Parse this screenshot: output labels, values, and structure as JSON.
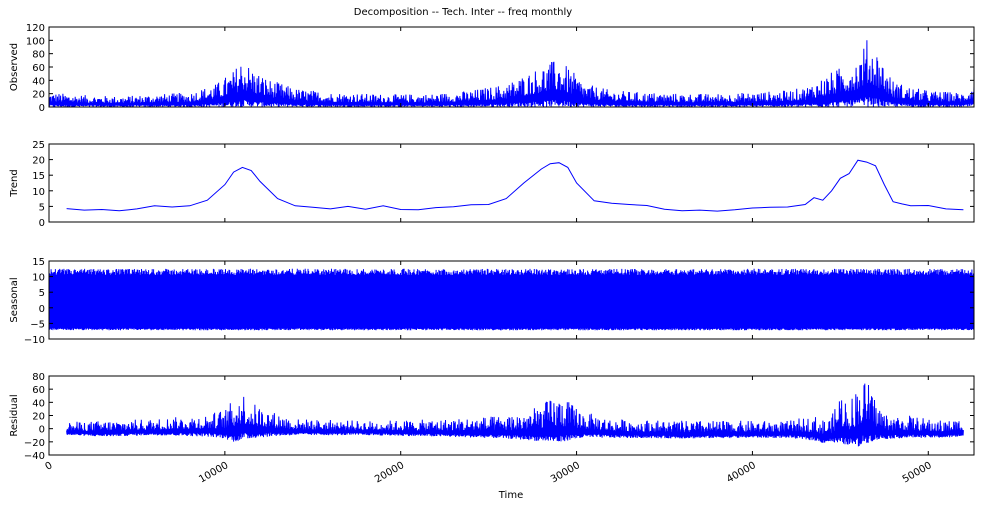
{
  "title": "Decomposition -- Tech. Inter -- freq monthly",
  "line_color": "#0000ff",
  "chart_data": [
    {
      "type": "line",
      "ylabel": "Observed",
      "xlim": [
        0,
        52600
      ],
      "ylim": [
        0,
        120
      ],
      "yticks": [
        "0",
        "20",
        "40",
        "60",
        "80",
        "100",
        "120"
      ],
      "envelope": {
        "x": [
          0,
          2000,
          4000,
          6000,
          8000,
          9500,
          10500,
          11000,
          11500,
          12500,
          14000,
          16000,
          18000,
          20000,
          22000,
          24000,
          26000,
          27500,
          28500,
          29000,
          29500,
          30500,
          32000,
          34000,
          36000,
          38000,
          40000,
          42000,
          43000,
          44000,
          45000,
          46000,
          46500,
          47000,
          47500,
          48000,
          49000,
          50000,
          51000,
          52000,
          52600
        ],
        "upper": [
          22,
          18,
          16,
          19,
          22,
          35,
          55,
          75,
          60,
          42,
          28,
          22,
          20,
          19,
          20,
          25,
          35,
          55,
          68,
          72,
          60,
          35,
          25,
          22,
          20,
          20,
          22,
          25,
          30,
          45,
          60,
          75,
          102,
          90,
          65,
          40,
          30,
          25,
          23,
          22,
          38
        ],
        "lower": [
          0,
          0,
          0,
          0,
          0,
          0,
          0,
          0,
          0,
          0,
          0,
          0,
          0,
          0,
          0,
          0,
          0,
          0,
          0,
          0,
          0,
          0,
          0,
          0,
          0,
          0,
          0,
          0,
          0,
          0,
          0,
          0,
          0,
          0,
          0,
          0,
          0,
          0,
          0,
          0,
          0
        ]
      }
    },
    {
      "type": "line",
      "ylabel": "Trend",
      "xlim": [
        0,
        52600
      ],
      "ylim": [
        0,
        25
      ],
      "yticks": [
        "0",
        "5",
        "10",
        "15",
        "20",
        "25"
      ],
      "x": [
        1000,
        2000,
        3000,
        4000,
        5000,
        6000,
        7000,
        8000,
        9000,
        10000,
        10500,
        11000,
        11500,
        12000,
        13000,
        14000,
        15000,
        16000,
        17000,
        18000,
        19000,
        20000,
        21000,
        22000,
        23000,
        24000,
        25000,
        26000,
        27000,
        28000,
        28500,
        29000,
        29500,
        30000,
        31000,
        32000,
        33000,
        34000,
        35000,
        36000,
        37000,
        38000,
        39000,
        40000,
        41000,
        42000,
        43000,
        43500,
        44000,
        44500,
        45000,
        45500,
        46000,
        46500,
        47000,
        47500,
        48000,
        48500,
        49000,
        50000,
        51000,
        52000
      ],
      "y": [
        4.3,
        3.8,
        4.0,
        3.6,
        4.2,
        5.2,
        4.8,
        5.2,
        7.0,
        12.0,
        16.0,
        17.5,
        16.5,
        13.0,
        7.5,
        5.2,
        4.7,
        4.2,
        5.0,
        4.1,
        5.2,
        4.0,
        3.9,
        4.6,
        4.9,
        5.5,
        5.6,
        7.5,
        12.5,
        17.0,
        18.7,
        19.0,
        17.5,
        12.5,
        6.8,
        6.0,
        5.6,
        5.3,
        4.1,
        3.6,
        3.8,
        3.5,
        3.9,
        4.5,
        4.7,
        4.8,
        5.6,
        7.8,
        7.0,
        10.0,
        14.0,
        15.5,
        19.8,
        19.2,
        18.0,
        12.0,
        6.5,
        5.8,
        5.2,
        5.3,
        4.2,
        3.9
      ]
    },
    {
      "type": "line",
      "ylabel": "Seasonal",
      "xlim": [
        0,
        52600
      ],
      "ylim": [
        -10,
        15
      ],
      "yticks": [
        "−10",
        "−5",
        "0",
        "5",
        "10",
        "15"
      ],
      "envelope": {
        "upper_range": [
          10.5,
          12.5
        ],
        "lower": -7.2,
        "period": 730
      }
    },
    {
      "type": "line",
      "ylabel": "Residual",
      "xlim": [
        0,
        52600
      ],
      "ylim": [
        -40,
        80
      ],
      "yticks": [
        "−40",
        "−20",
        "0",
        "20",
        "40",
        "60",
        "80"
      ],
      "envelope": {
        "x": [
          1000,
          3000,
          6000,
          9000,
          10000,
          10500,
          11000,
          11500,
          12500,
          14000,
          18000,
          22000,
          26000,
          27500,
          28500,
          29000,
          29500,
          30500,
          32000,
          36000,
          40000,
          42000,
          43500,
          44000,
          44500,
          45000,
          45500,
          46000,
          46500,
          47000,
          47500,
          48000,
          49000,
          50000,
          51000,
          52000
        ],
        "upper": [
          10,
          12,
          15,
          22,
          30,
          45,
          58,
          40,
          28,
          15,
          12,
          14,
          20,
          30,
          45,
          50,
          42,
          25,
          15,
          12,
          12,
          12,
          20,
          15,
          18,
          60,
          40,
          70,
          75,
          45,
          25,
          20,
          20,
          15,
          12,
          16
        ],
        "lower": [
          -10,
          -12,
          -10,
          -12,
          -15,
          -20,
          -18,
          -15,
          -12,
          -10,
          -10,
          -12,
          -15,
          -18,
          -20,
          -22,
          -18,
          -14,
          -14,
          -15,
          -14,
          -14,
          -18,
          -22,
          -20,
          -26,
          -24,
          -29,
          -22,
          -18,
          -16,
          -15,
          -14,
          -14,
          -14,
          -12
        ]
      }
    }
  ],
  "x_axis": {
    "label": "Time",
    "ticks": [
      {
        "value": 0,
        "label": "0"
      },
      {
        "value": 10000,
        "label": "10000"
      },
      {
        "value": 20000,
        "label": "20000"
      },
      {
        "value": 30000,
        "label": "30000"
      },
      {
        "value": 40000,
        "label": "40000"
      },
      {
        "value": 50000,
        "label": "50000"
      }
    ]
  }
}
